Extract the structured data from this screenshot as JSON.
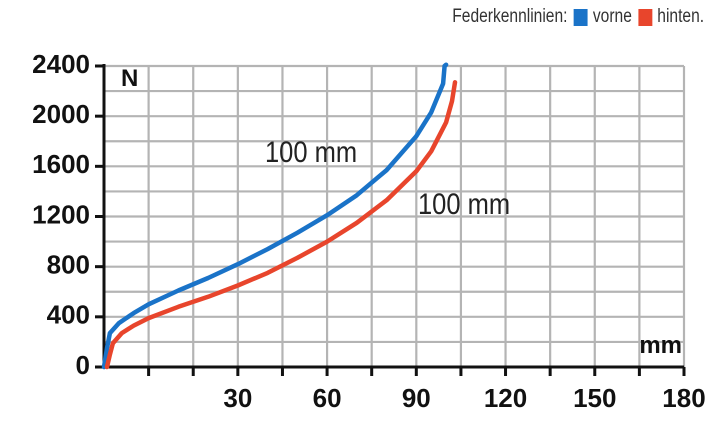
{
  "legend": {
    "title": "Federkennlinien:",
    "items": [
      {
        "label": "vorne",
        "color": "#1a73c8"
      },
      {
        "label": "hinten.",
        "color": "#e8452c"
      }
    ]
  },
  "chart_data": {
    "type": "line",
    "xlabel": "mm",
    "ylabel": "N",
    "xlim": [
      -15,
      180
    ],
    "ylim": [
      0,
      2400
    ],
    "x_ticks": [
      "30",
      "60",
      "90",
      "120",
      "150",
      "180"
    ],
    "y_ticks": [
      "0",
      "400",
      "800",
      "1200",
      "1600",
      "2000",
      "2400"
    ],
    "grid": true,
    "annotations": [
      "100 mm",
      "100 mm"
    ],
    "series": [
      {
        "name": "vorne",
        "color": "#1a73c8",
        "x": [
          -15,
          -14,
          -13,
          -10,
          -5,
          0,
          10,
          20,
          30,
          40,
          50,
          60,
          70,
          80,
          90,
          95,
          99,
          99.5,
          100
        ],
        "y": [
          0,
          150,
          270,
          350,
          430,
          500,
          610,
          710,
          820,
          940,
          1070,
          1210,
          1370,
          1570,
          1840,
          2030,
          2260,
          2400,
          2410
        ]
      },
      {
        "name": "hinten.",
        "color": "#e8452c",
        "x": [
          -14,
          -13,
          -12,
          -9,
          -5,
          0,
          10,
          20,
          30,
          40,
          50,
          60,
          70,
          80,
          90,
          95,
          100,
          102,
          103
        ],
        "y": [
          0,
          100,
          190,
          270,
          330,
          390,
          480,
          560,
          650,
          750,
          870,
          1000,
          1150,
          1330,
          1560,
          1720,
          1950,
          2120,
          2270
        ]
      }
    ]
  }
}
